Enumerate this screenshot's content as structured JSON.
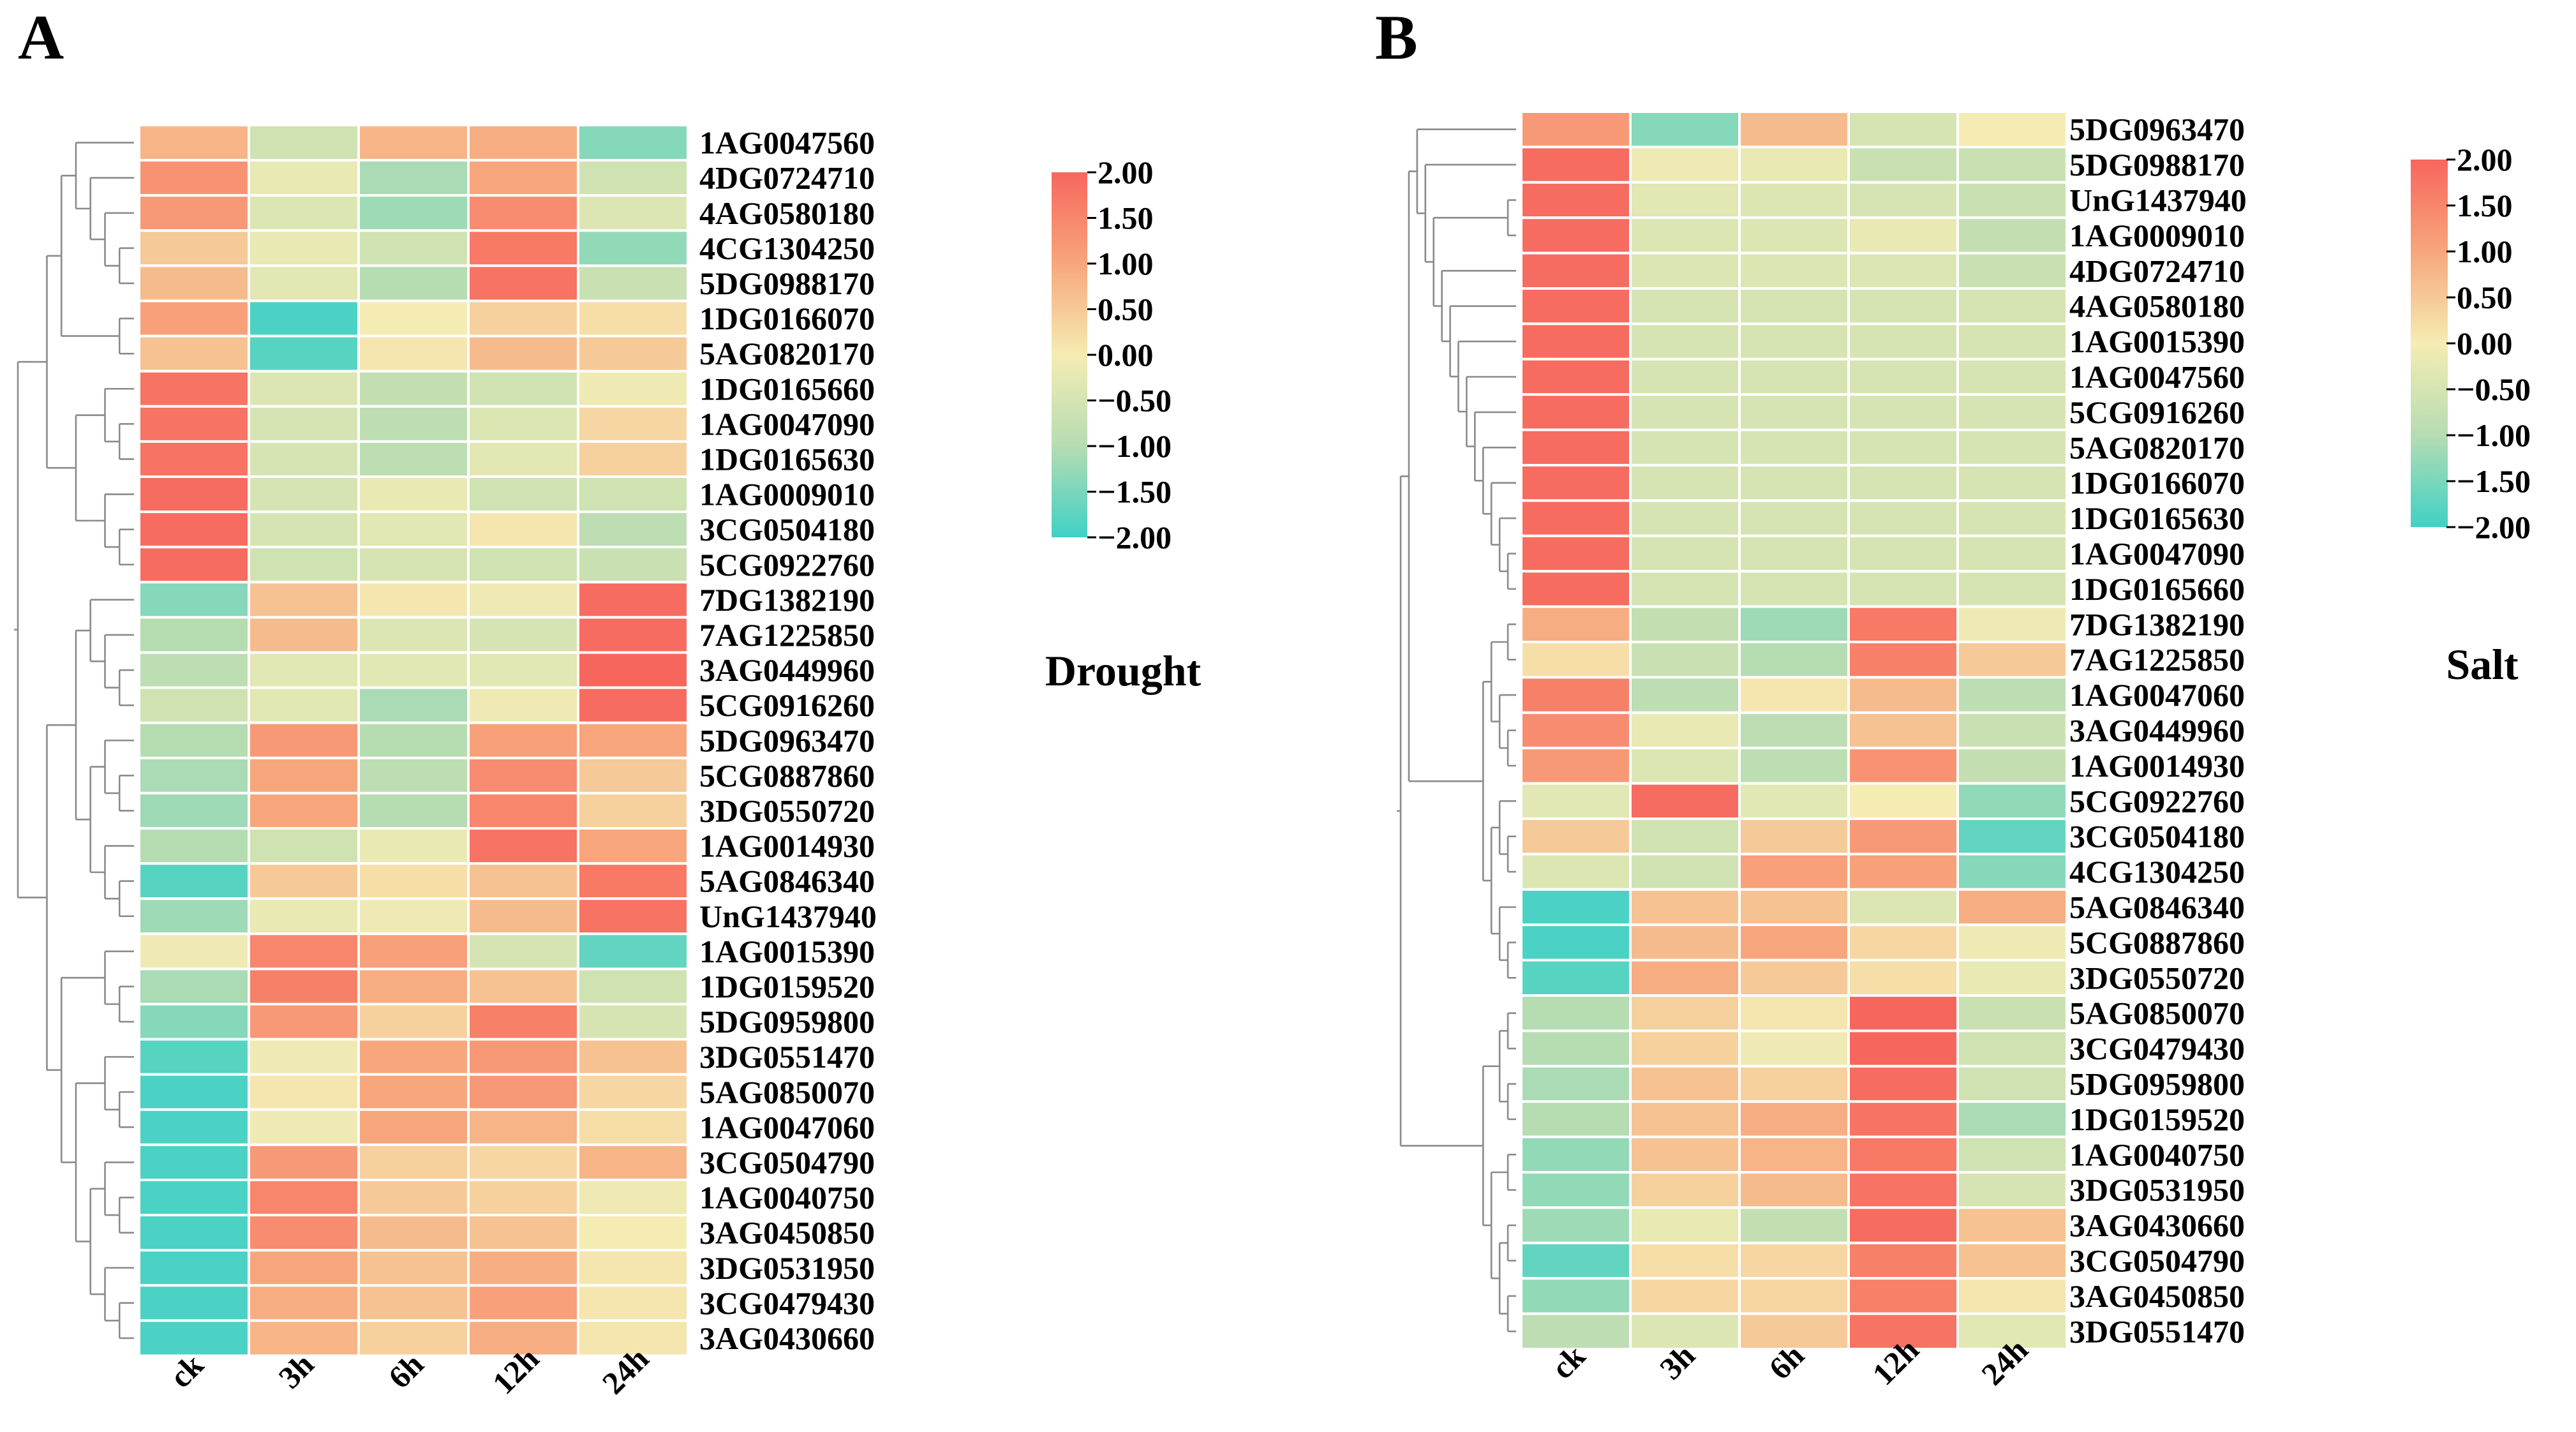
{
  "colors": {
    "low": "#3fd1c6",
    "mid": "#f5ecb3",
    "high": "#f7665d",
    "cell_border": "#ffffff",
    "tree": "#8a8a8a"
  },
  "colorbar_ticks": [
    "2.00",
    "1.50",
    "1.00",
    "0.50",
    "0.00",
    "−0.50",
    "−1.00",
    "−1.50",
    "−2.00"
  ],
  "columns": [
    "ck",
    "3h",
    "6h",
    "12h",
    "24h"
  ],
  "chart_data": [
    {
      "type": "heatmap",
      "panel": "A",
      "condition": "Drought",
      "zlim": [
        -2,
        2
      ],
      "rows": [
        "1AG0047560",
        "4DG0724710",
        "4AG0580180",
        "4CG1304250",
        "5DG0988170",
        "1DG0166070",
        "5AG0820170",
        "1DG0165660",
        "1AG0047090",
        "1DG0165630",
        "1AG0009010",
        "3CG0504180",
        "5CG0922760",
        "7DG1382190",
        "7AG1225850",
        "3AG0449960",
        "5CG0916260",
        "5DG0963470",
        "5CG0887860",
        "3DG0550720",
        "1AG0014930",
        "5AG0846340",
        "UnG1437940",
        "1AG0015390",
        "1DG0159520",
        "5DG0959800",
        "3DG0551470",
        "5AG0850070",
        "1AG0047060",
        "3CG0504790",
        "1AG0040750",
        "3AG0450850",
        "3DG0531950",
        "3CG0479430",
        "3AG0430660"
      ],
      "values": [
        [
          0.8,
          -0.6,
          0.8,
          0.9,
          -1.4
        ],
        [
          1.3,
          -0.2,
          -1.1,
          1.0,
          -0.6
        ],
        [
          1.2,
          -0.4,
          -1.2,
          1.4,
          -0.4
        ],
        [
          0.5,
          -0.2,
          -0.6,
          1.7,
          -1.3
        ],
        [
          0.7,
          -0.3,
          -1.0,
          1.8,
          -0.7
        ],
        [
          1.1,
          -1.9,
          0.0,
          0.4,
          0.2
        ],
        [
          0.6,
          -1.8,
          0.1,
          0.7,
          0.5
        ],
        [
          1.8,
          -0.4,
          -0.8,
          -0.6,
          -0.1
        ],
        [
          1.8,
          -0.5,
          -0.9,
          -0.4,
          0.3
        ],
        [
          1.8,
          -0.5,
          -0.9,
          -0.3,
          0.4
        ],
        [
          1.9,
          -0.5,
          -0.2,
          -0.6,
          -0.6
        ],
        [
          1.9,
          -0.5,
          -0.3,
          0.1,
          -0.9
        ],
        [
          1.9,
          -0.6,
          -0.5,
          -0.6,
          -0.7
        ],
        [
          -1.4,
          0.6,
          0.1,
          -0.1,
          1.9
        ],
        [
          -1.0,
          0.7,
          -0.4,
          -0.5,
          1.9
        ],
        [
          -0.9,
          -0.3,
          -0.3,
          -0.3,
          2.0
        ],
        [
          -0.6,
          -0.3,
          -1.1,
          -0.1,
          1.9
        ],
        [
          -1.0,
          1.2,
          -1.0,
          1.1,
          1.0
        ],
        [
          -1.1,
          1.0,
          -0.9,
          1.4,
          0.5
        ],
        [
          -1.2,
          1.0,
          -1.0,
          1.5,
          0.4
        ],
        [
          -1.0,
          -0.6,
          -0.2,
          1.8,
          1.0
        ],
        [
          -1.8,
          0.5,
          0.2,
          0.6,
          1.7
        ],
        [
          -1.2,
          -0.2,
          -0.1,
          0.7,
          1.8
        ],
        [
          -0.1,
          1.5,
          1.1,
          -0.5,
          -1.7
        ],
        [
          -1.1,
          1.6,
          0.9,
          0.6,
          -0.6
        ],
        [
          -1.4,
          1.2,
          0.4,
          1.6,
          -0.5
        ],
        [
          -1.8,
          -0.1,
          1.0,
          1.2,
          0.6
        ],
        [
          -1.9,
          0.1,
          1.0,
          1.2,
          0.3
        ],
        [
          -1.9,
          -0.1,
          1.0,
          0.8,
          0.2
        ],
        [
          -1.9,
          1.2,
          0.4,
          0.3,
          0.8
        ],
        [
          -1.9,
          1.5,
          0.5,
          0.4,
          -0.1
        ],
        [
          -1.9,
          1.4,
          0.7,
          0.6,
          0.0
        ],
        [
          -1.9,
          1.0,
          0.6,
          0.9,
          0.1
        ],
        [
          -1.9,
          0.9,
          0.6,
          1.1,
          0.1
        ],
        [
          -1.9,
          0.8,
          0.4,
          0.9,
          0.1
        ]
      ]
    },
    {
      "type": "heatmap",
      "panel": "B",
      "condition": "Salt",
      "zlim": [
        -2,
        2
      ],
      "rows": [
        "5DG0963470",
        "5DG0988170",
        "UnG1437940",
        "1AG0009010",
        "4DG0724710",
        "4AG0580180",
        "1AG0015390",
        "1AG0047560",
        "5CG0916260",
        "5AG0820170",
        "1DG0166070",
        "1DG0165630",
        "1AG0047090",
        "1DG0165660",
        "7DG1382190",
        "7AG1225850",
        "1AG0047060",
        "3AG0449960",
        "1AG0014930",
        "5CG0922760",
        "3CG0504180",
        "4CG1304250",
        "5AG0846340",
        "5CG0887860",
        "3DG0550720",
        "5AG0850070",
        "3CG0479430",
        "5DG0959800",
        "1DG0159520",
        "1AG0040750",
        "3DG0531950",
        "3AG0430660",
        "3CG0504790",
        "3AG0450850",
        "3DG0551470"
      ],
      "values": [
        [
          1.2,
          -1.4,
          0.7,
          -0.5,
          0.0
        ],
        [
          1.9,
          -0.1,
          -0.2,
          -0.7,
          -0.7
        ],
        [
          1.9,
          -0.3,
          -0.4,
          -0.5,
          -0.7
        ],
        [
          1.9,
          -0.4,
          -0.4,
          -0.2,
          -0.8
        ],
        [
          1.9,
          -0.4,
          -0.4,
          -0.4,
          -0.7
        ],
        [
          1.9,
          -0.5,
          -0.5,
          -0.5,
          -0.5
        ],
        [
          1.9,
          -0.5,
          -0.5,
          -0.5,
          -0.5
        ],
        [
          1.9,
          -0.5,
          -0.5,
          -0.5,
          -0.5
        ],
        [
          1.9,
          -0.5,
          -0.5,
          -0.5,
          -0.5
        ],
        [
          1.9,
          -0.5,
          -0.5,
          -0.5,
          -0.5
        ],
        [
          1.9,
          -0.5,
          -0.5,
          -0.5,
          -0.5
        ],
        [
          1.9,
          -0.5,
          -0.5,
          -0.5,
          -0.5
        ],
        [
          1.9,
          -0.5,
          -0.5,
          -0.5,
          -0.5
        ],
        [
          1.9,
          -0.5,
          -0.5,
          -0.5,
          -0.5
        ],
        [
          0.9,
          -0.8,
          -1.2,
          1.7,
          -0.1
        ],
        [
          0.2,
          -0.7,
          -1.0,
          1.6,
          0.5
        ],
        [
          1.6,
          -0.9,
          0.1,
          0.7,
          -0.9
        ],
        [
          1.4,
          -0.2,
          -0.9,
          0.6,
          -0.7
        ],
        [
          1.2,
          -0.4,
          -0.9,
          1.3,
          -0.8
        ],
        [
          -0.3,
          1.9,
          -0.3,
          0.0,
          -1.3
        ],
        [
          0.5,
          -0.6,
          0.5,
          1.2,
          -1.7
        ],
        [
          -0.4,
          -0.6,
          1.1,
          1.1,
          -1.4
        ],
        [
          -1.9,
          0.6,
          0.6,
          -0.4,
          0.9
        ],
        [
          -1.9,
          0.7,
          1.0,
          0.3,
          -0.1
        ],
        [
          -1.8,
          0.9,
          0.5,
          0.2,
          -0.2
        ],
        [
          -1.0,
          0.4,
          0.1,
          2.0,
          -0.7
        ],
        [
          -1.0,
          0.4,
          -0.1,
          2.0,
          -0.6
        ],
        [
          -1.1,
          0.6,
          0.4,
          1.9,
          -0.6
        ],
        [
          -1.0,
          0.6,
          0.9,
          1.8,
          -1.1
        ],
        [
          -1.3,
          0.6,
          0.8,
          1.7,
          -0.6
        ],
        [
          -1.3,
          0.4,
          0.7,
          1.8,
          -0.5
        ],
        [
          -1.2,
          -0.2,
          -0.8,
          1.9,
          0.6
        ],
        [
          -1.7,
          0.2,
          0.3,
          1.6,
          0.6
        ],
        [
          -1.3,
          0.3,
          0.3,
          1.6,
          0.1
        ],
        [
          -0.9,
          -0.4,
          0.5,
          1.8,
          -0.3
        ]
      ]
    }
  ],
  "panels": [
    {
      "letter": "A",
      "condition": "Drought"
    },
    {
      "letter": "B",
      "condition": "Salt"
    }
  ]
}
